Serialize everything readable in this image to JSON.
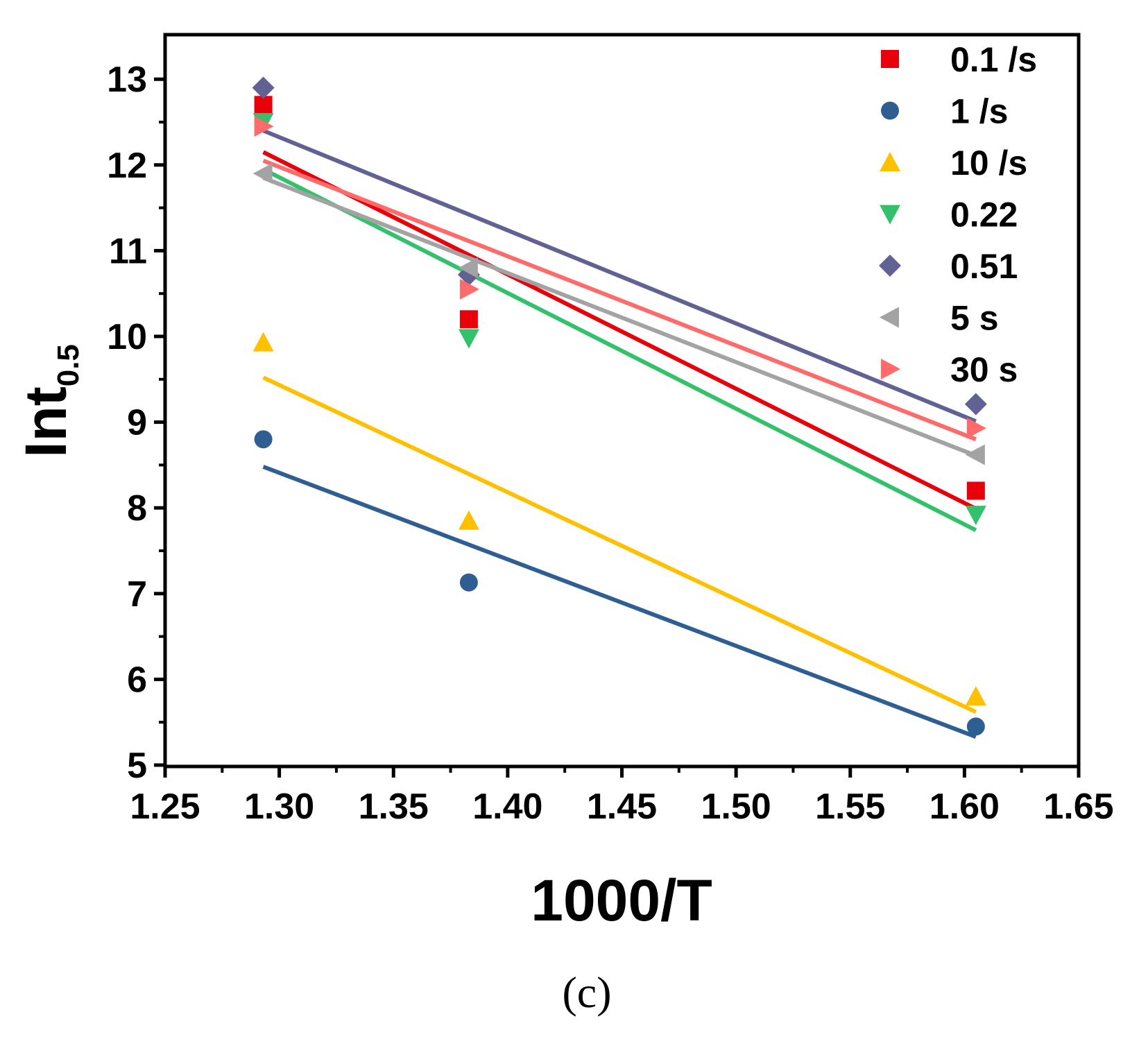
{
  "chart_data": {
    "type": "scatter",
    "title": "",
    "xlabel": "1000/T",
    "ylabel_main": "Int",
    "ylabel_sub": "0.5",
    "caption": "(c)",
    "xlim": [
      1.25,
      1.65
    ],
    "ylim": [
      5,
      13.5
    ],
    "xticks": [
      1.25,
      1.3,
      1.35,
      1.4,
      1.45,
      1.5,
      1.55,
      1.6,
      1.65
    ],
    "xtick_labels": [
      "1.25",
      "1.30",
      "1.35",
      "1.40",
      "1.45",
      "1.50",
      "1.55",
      "1.60",
      "1.65"
    ],
    "yticks": [
      5,
      6,
      7,
      8,
      9,
      10,
      11,
      12,
      13
    ],
    "ytick_labels": [
      "5",
      "6",
      "7",
      "8",
      "9",
      "10",
      "11",
      "12",
      "13"
    ],
    "legend_position": "top-right",
    "x": [
      1.293,
      1.383,
      1.605
    ],
    "series": [
      {
        "name": "0.1 /s",
        "marker": "square",
        "color": "#e8000b",
        "values": [
          12.7,
          10.2,
          8.2
        ],
        "fit": [
          12.15,
          7.99
        ]
      },
      {
        "name": "1 /s",
        "marker": "circle",
        "color": "#2f5f92",
        "values": [
          8.8,
          7.13,
          5.45
        ],
        "fit": [
          8.48,
          5.33
        ]
      },
      {
        "name": "10 /s",
        "marker": "triangle-up",
        "color": "#ffc000",
        "values": [
          9.93,
          7.85,
          5.8
        ],
        "fit": [
          9.52,
          5.62
        ]
      },
      {
        "name": "0.22",
        "marker": "triangle-down",
        "color": "#33c26b",
        "values": [
          12.5,
          9.98,
          7.92
        ],
        "fit": [
          11.95,
          7.74
        ]
      },
      {
        "name": "0.51",
        "marker": "diamond",
        "color": "#626193",
        "values": [
          12.9,
          10.72,
          9.21
        ],
        "fit": [
          12.4,
          9.01
        ]
      },
      {
        "name": "5 s",
        "marker": "triangle-left",
        "color": "#a3a3a3",
        "values": [
          11.9,
          10.8,
          8.62
        ],
        "fit": [
          11.85,
          8.61
        ]
      },
      {
        "name": "30 s",
        "marker": "triangle-right",
        "color": "#ff6a6a",
        "values": [
          12.45,
          10.55,
          8.93
        ],
        "fit": [
          12.05,
          8.8
        ]
      }
    ]
  },
  "colors": {
    "axis": "#000000",
    "background": "#ffffff"
  }
}
